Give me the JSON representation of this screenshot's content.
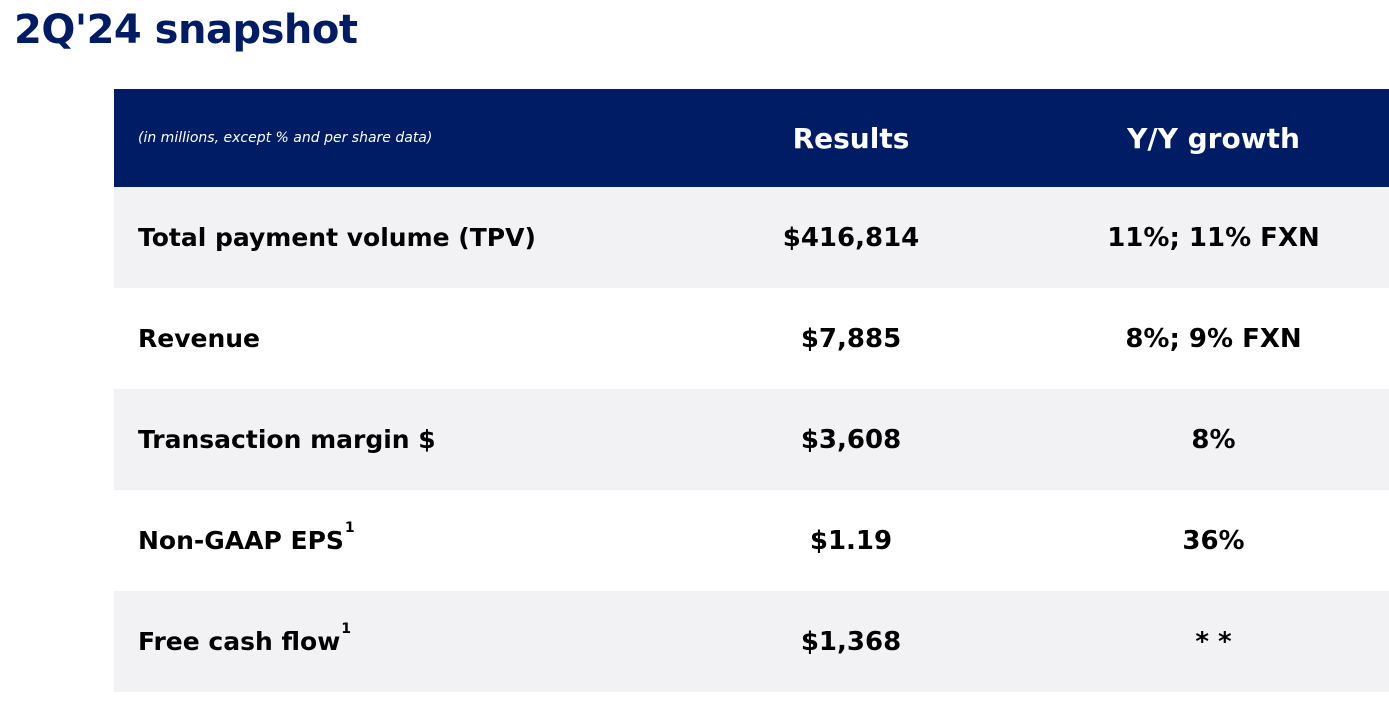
{
  "page": {
    "title": "2Q'24 snapshot"
  },
  "table": {
    "header": {
      "note": "(in millions, except % and per share data)",
      "results": "Results",
      "growth": "Y/Y growth"
    },
    "rows": [
      {
        "label": "Total payment volume (TPV)",
        "footnote": "",
        "results": "$416,814",
        "growth": "11%; 11% FXN"
      },
      {
        "label": "Revenue",
        "footnote": "",
        "results": "$7,885",
        "growth": "8%; 9% FXN"
      },
      {
        "label": "Transaction margin $",
        "footnote": "",
        "results": "$3,608",
        "growth": "8%"
      },
      {
        "label": "Non-GAAP EPS",
        "footnote": "1",
        "results": "$1.19",
        "growth": "36%"
      },
      {
        "label": "Free cash flow",
        "footnote": "1",
        "results": "$1,368",
        "growth": "* *"
      }
    ]
  },
  "colors": {
    "title": "#001c64",
    "header_bg": "#001c64",
    "header_text": "#ffffff",
    "shaded_row_bg": "#f2f2f5",
    "plain_row_bg": "#ffffff"
  }
}
